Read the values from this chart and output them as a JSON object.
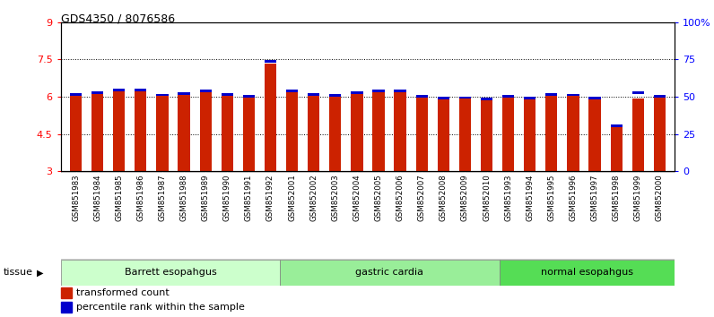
{
  "title": "GDS4350 / 8076586",
  "samples": [
    "GSM851983",
    "GSM851984",
    "GSM851985",
    "GSM851986",
    "GSM851987",
    "GSM851988",
    "GSM851989",
    "GSM851990",
    "GSM851991",
    "GSM851992",
    "GSM852001",
    "GSM852002",
    "GSM852003",
    "GSM852004",
    "GSM852005",
    "GSM852006",
    "GSM852007",
    "GSM852008",
    "GSM852009",
    "GSM852010",
    "GSM851993",
    "GSM851994",
    "GSM851995",
    "GSM851996",
    "GSM851997",
    "GSM851998",
    "GSM851999",
    "GSM852000"
  ],
  "red_values": [
    6.05,
    6.1,
    6.22,
    6.22,
    6.05,
    6.1,
    6.17,
    6.05,
    5.98,
    7.35,
    6.17,
    6.05,
    6.0,
    6.12,
    6.17,
    6.17,
    6.0,
    5.92,
    5.93,
    5.88,
    5.98,
    5.92,
    6.05,
    6.02,
    5.88,
    4.78,
    5.92,
    5.98
  ],
  "blue_values": [
    6.1,
    6.15,
    6.27,
    6.27,
    6.07,
    6.13,
    6.22,
    6.08,
    6.02,
    7.41,
    6.22,
    6.08,
    6.05,
    6.15,
    6.22,
    6.22,
    6.03,
    5.95,
    5.96,
    5.91,
    6.02,
    5.95,
    6.1,
    6.07,
    5.95,
    4.82,
    6.15,
    6.02
  ],
  "groups": [
    {
      "label": "Barrett esopahgus",
      "start": 0,
      "end": 9,
      "color": "#ccffcc"
    },
    {
      "label": "gastric cardia",
      "start": 10,
      "end": 19,
      "color": "#99ee99"
    },
    {
      "label": "normal esopahgus",
      "start": 20,
      "end": 27,
      "color": "#55dd55"
    }
  ],
  "ymin": 3,
  "ymax": 9,
  "yticks_left": [
    3,
    4.5,
    6,
    7.5,
    9
  ],
  "ytick_labels_left": [
    "3",
    "4.5",
    "6",
    "7.5",
    "9"
  ],
  "yticks_right": [
    0,
    25,
    50,
    75,
    100
  ],
  "ytick_labels_right": [
    "0",
    "25",
    "50",
    "75",
    "100%"
  ],
  "bar_color": "#cc2200",
  "blue_color": "#0000cc",
  "legend_red": "transformed count",
  "legend_blue": "percentile rank within the sample",
  "tissue_label": "tissue",
  "xticklabel_bg": "#cccccc",
  "plot_bg": "#ffffff",
  "grid_lines": [
    4.5,
    6.0,
    7.5
  ]
}
